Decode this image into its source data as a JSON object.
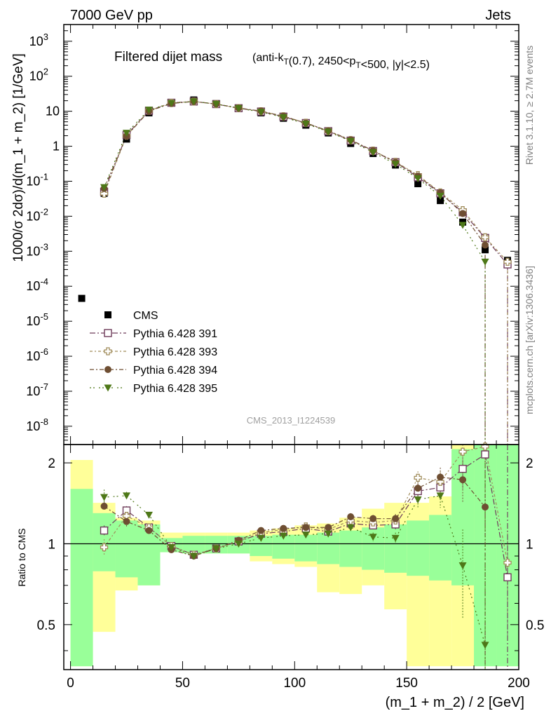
{
  "header": {
    "left": "7000 GeV pp",
    "right": "Jets"
  },
  "side_labels": {
    "rivet": "Rivet 3.1.10, ≥ 2.7M events",
    "mcplots": "mcplots.cern.ch [arXiv:1306.3436]"
  },
  "analysis_id": "CMS_2013_I1224539",
  "colors": {
    "cms": "#000000",
    "p391": "#6e3c5a",
    "p393": "#a08c5a",
    "p394": "#6e4e32",
    "p395": "#4e7818",
    "band_yellow": "#ffff99",
    "band_green": "#99ff99"
  },
  "chart_data": [
    {
      "type": "scatter",
      "panel": "main",
      "title": "Filtered dijet mass",
      "title_detail": "(anti-k_T(0.7), 2450<p_T<500, |y|<2.5)",
      "ylabel": "1000/σ 2dσ)/d(m_1 + m_2) [1/GeV]",
      "xlim": [
        -3,
        200
      ],
      "ylim": [
        3e-09,
        3000
      ],
      "yscale": "log",
      "y_ticks": [
        "10^{-8}",
        "10^{-7}",
        "10^{-6}",
        "10^{-5}",
        "10^{-4}",
        "10^{-3}",
        "10^{-2}",
        "10^{-1}",
        "1",
        "10",
        "10^{2}",
        "10^{3}"
      ],
      "legend_position": "left",
      "x": [
        5,
        15,
        25,
        35,
        45,
        55,
        65,
        75,
        85,
        95,
        105,
        115,
        125,
        135,
        145,
        155,
        165,
        175,
        185,
        195
      ],
      "series": [
        {
          "name": "CMS",
          "marker": "square-filled",
          "y": [
            4.5e-05,
            0.045,
            1.6,
            9.0,
            17.5,
            21.0,
            16.5,
            12.0,
            9.0,
            6.3,
            4.0,
            2.4,
            1.2,
            0.62,
            0.29,
            0.085,
            0.028,
            0.0068,
            0.0011,
            0.00055
          ]
        },
        {
          "name": "Pythia 6.428 391",
          "marker": "square-open",
          "y": [
            null,
            0.05,
            2.1,
            10.3,
            17.5,
            19.0,
            16.0,
            12.2,
            9.8,
            7.0,
            4.6,
            2.7,
            1.45,
            0.73,
            0.35,
            0.13,
            0.045,
            0.013,
            0.0024,
            0.00042
          ]
        },
        {
          "name": "Pythia 6.428 393",
          "marker": "cross-open",
          "y": [
            null,
            0.044,
            2.0,
            10.3,
            17.3,
            19.0,
            16.0,
            12.3,
            10.0,
            7.2,
            4.7,
            2.7,
            1.5,
            0.75,
            0.36,
            0.15,
            0.048,
            0.015,
            0.0025,
            0.0005
          ]
        },
        {
          "name": "Pythia 6.428 394",
          "marker": "circle-filled",
          "y": [
            null,
            0.062,
            1.95,
            10.1,
            16.6,
            19.0,
            16.1,
            12.4,
            10.1,
            7.2,
            4.6,
            2.75,
            1.52,
            0.75,
            0.35,
            0.14,
            0.047,
            0.012,
            0.0015,
            null
          ]
        },
        {
          "name": "Pythia 6.428 395",
          "marker": "triangle-down-filled",
          "y": [
            null,
            0.067,
            2.4,
            11.0,
            17.0,
            19.0,
            16.1,
            12.2,
            9.5,
            6.7,
            4.4,
            2.6,
            1.4,
            0.67,
            0.31,
            0.12,
            0.038,
            0.0056,
            0.0005,
            null
          ]
        }
      ]
    },
    {
      "type": "scatter",
      "panel": "ratio",
      "ylabel": "Ratio to CMS",
      "xlabel": "(m_1 + m_2) / 2 [GeV]",
      "xlim": [
        -3,
        200
      ],
      "ylim": [
        0.34,
        2.34
      ],
      "yscale": "log",
      "y_ticks": [
        "0.5",
        "1",
        "2"
      ],
      "x_ticks": [
        "0",
        "50",
        "100",
        "150",
        "200"
      ],
      "bin_edges": [
        0,
        10,
        20,
        30,
        40,
        50,
        60,
        70,
        80,
        90,
        100,
        110,
        120,
        130,
        140,
        150,
        160,
        170,
        180,
        190,
        200
      ],
      "bands": {
        "green_low": [
          0.35,
          0.79,
          0.75,
          0.7,
          0.93,
          0.92,
          0.92,
          0.92,
          0.9,
          0.88,
          0.86,
          0.84,
          0.82,
          0.8,
          0.78,
          0.76,
          0.73,
          0.7,
          0.35,
          0.35
        ],
        "green_high": [
          1.6,
          1.3,
          1.22,
          1.18,
          1.05,
          1.07,
          1.07,
          1.07,
          1.07,
          1.08,
          1.08,
          1.1,
          1.12,
          1.15,
          1.18,
          1.22,
          1.28,
          2.25,
          2.5,
          2.5
        ],
        "yellow_low": [
          0.35,
          0.47,
          0.67,
          0.7,
          0.93,
          0.92,
          0.92,
          0.92,
          0.86,
          0.84,
          0.82,
          0.66,
          0.65,
          0.7,
          0.57,
          0.35,
          0.35,
          0.35,
          0.35,
          0.35
        ],
        "yellow_high": [
          2.05,
          1.42,
          1.25,
          1.22,
          1.1,
          1.1,
          1.1,
          1.1,
          1.12,
          1.14,
          1.17,
          1.19,
          1.25,
          1.35,
          1.42,
          1.42,
          1.5,
          2.5,
          2.5,
          2.5
        ]
      },
      "x": [
        15,
        25,
        35,
        45,
        55,
        65,
        75,
        85,
        95,
        105,
        115,
        125,
        135,
        145,
        155,
        165,
        175,
        185,
        195
      ],
      "series": [
        {
          "name": "Pythia 6.428 391",
          "y": [
            1.12,
            1.33,
            1.15,
            0.98,
            0.91,
            0.96,
            1.02,
            1.09,
            1.11,
            1.14,
            1.11,
            1.19,
            1.17,
            1.18,
            1.57,
            1.62,
            1.9,
            2.15,
            0.75
          ],
          "err": [
            0.05,
            0.05,
            0.03,
            0.02,
            0.02,
            0.02,
            0.02,
            0.02,
            0.02,
            0.02,
            0.03,
            0.04,
            0.04,
            0.05,
            0.1,
            0.15,
            0.3,
            0.4,
            0.3
          ]
        },
        {
          "name": "Pythia 6.428 393",
          "y": [
            0.97,
            1.27,
            1.15,
            0.98,
            0.91,
            0.96,
            1.02,
            1.1,
            1.13,
            1.16,
            1.13,
            1.22,
            1.2,
            1.22,
            1.76,
            1.7,
            2.2,
            2.3,
            0.85
          ],
          "err": [
            0.07,
            0.05,
            0.03,
            0.02,
            0.02,
            0.02,
            0.02,
            0.02,
            0.02,
            0.02,
            0.03,
            0.04,
            0.04,
            0.05,
            0.1,
            0.15,
            0.3,
            0.4,
            0.3
          ]
        },
        {
          "name": "Pythia 6.428 394",
          "y": [
            1.38,
            1.21,
            1.12,
            0.95,
            0.9,
            0.96,
            1.03,
            1.12,
            1.14,
            1.15,
            1.15,
            1.26,
            1.24,
            1.24,
            1.61,
            1.77,
            1.73,
            1.37,
            null
          ],
          "err": [
            0.05,
            0.05,
            0.03,
            0.02,
            0.02,
            0.02,
            0.02,
            0.02,
            0.02,
            0.02,
            0.03,
            0.04,
            0.04,
            0.05,
            0.1,
            0.15,
            0.3,
            0.4,
            0
          ]
        },
        {
          "name": "Pythia 6.428 395",
          "y": [
            1.49,
            1.51,
            1.28,
            0.97,
            0.9,
            0.96,
            1.0,
            1.05,
            1.07,
            1.08,
            1.09,
            1.15,
            1.06,
            1.05,
            1.46,
            1.51,
            0.83,
            0.42,
            null
          ],
          "err": [
            0.1,
            0.05,
            0.03,
            0.02,
            0.02,
            0.02,
            0.02,
            0.02,
            0.02,
            0.02,
            0.03,
            0.04,
            0.04,
            0.05,
            0.1,
            0.15,
            0.3,
            0.4,
            0
          ]
        }
      ]
    }
  ]
}
